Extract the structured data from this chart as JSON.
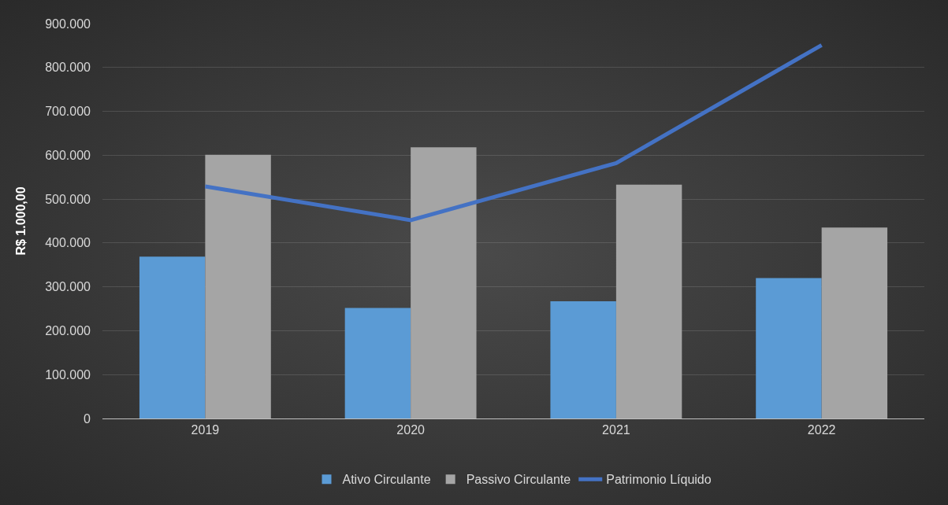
{
  "chart_data": {
    "type": "bar",
    "ylabel": "R$ 1.000,00",
    "categories": [
      "2019",
      "2020",
      "2021",
      "2022"
    ],
    "series": [
      {
        "name": "Ativo Circulante",
        "color": "#5b9bd5",
        "values": [
          369000,
          252000,
          267000,
          320000
        ]
      },
      {
        "name": "Passivo Circulante",
        "color": "#a5a5a5",
        "values": [
          601000,
          618000,
          533000,
          435000
        ]
      },
      {
        "name": "Patrimonio Líquido",
        "type": "line",
        "color": "#4472c4",
        "values": [
          529000,
          452000,
          582000,
          851000
        ]
      }
    ],
    "ylim": [
      0,
      900000
    ],
    "yticks": [
      {
        "value": 0,
        "label": "0"
      },
      {
        "value": 100000,
        "label": "100.000"
      },
      {
        "value": 200000,
        "label": "200.000"
      },
      {
        "value": 300000,
        "label": "300.000"
      },
      {
        "value": 400000,
        "label": "400.000"
      },
      {
        "value": 500000,
        "label": "500.000"
      },
      {
        "value": 600000,
        "label": "600.000"
      },
      {
        "value": 700000,
        "label": "700.000"
      },
      {
        "value": 800000,
        "label": "800.000"
      },
      {
        "value": 900000,
        "label": "900.000"
      }
    ],
    "grid": "y",
    "legend": "bottom",
    "line_style": "solid",
    "marker": "none"
  }
}
